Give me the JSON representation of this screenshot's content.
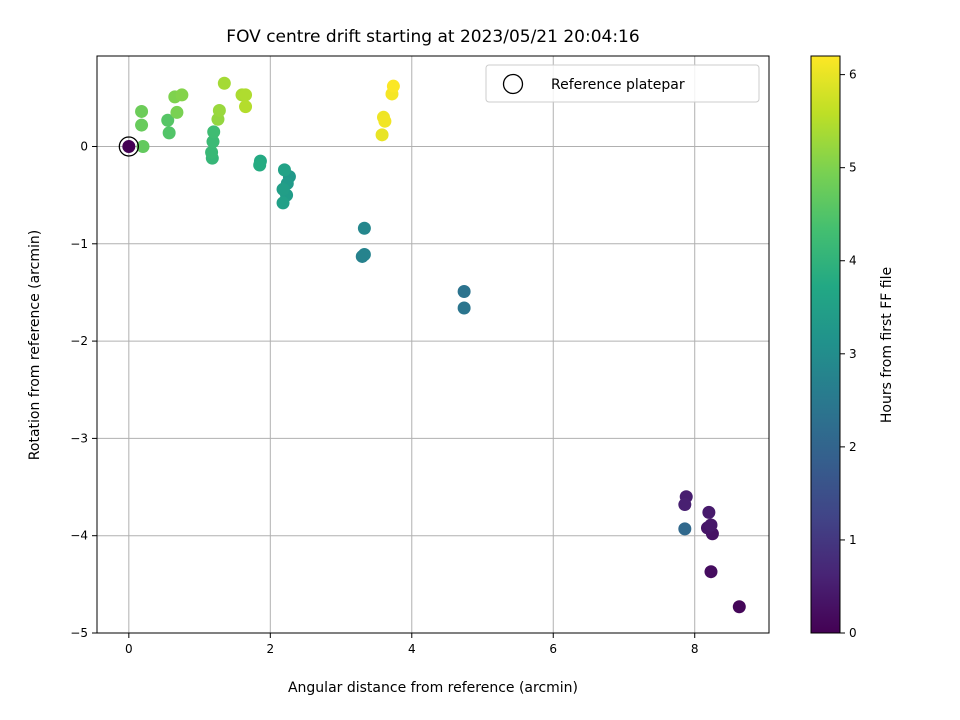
{
  "chart_data": {
    "type": "scatter",
    "title": "FOV centre drift starting at 2023/05/21 20:04:16",
    "xlabel": "Angular distance from reference (arcmin)",
    "ylabel": "Rotation from reference (arcmin)",
    "xlim": [
      -0.45,
      9.05
    ],
    "ylim": [
      -5.0,
      0.93
    ],
    "xticks": [
      0,
      2,
      4,
      6,
      8
    ],
    "yticks": [
      0,
      -1,
      -2,
      -3,
      -4,
      -5
    ],
    "xtick_labels": [
      "0",
      "2",
      "4",
      "6",
      "8"
    ],
    "ytick_labels": [
      "0",
      "−1",
      "−2",
      "−3",
      "−4",
      "−5"
    ],
    "grid": true,
    "legend_position": "top-right",
    "legend_entries": [
      "Reference platepar"
    ],
    "reference_point": {
      "x": 0.0,
      "y": 0.0
    },
    "colormap": "viridis",
    "colorbar": {
      "label": "Hours from first FF file",
      "range": [
        0,
        6.2
      ],
      "ticks": [
        0,
        1,
        2,
        3,
        4,
        5,
        6
      ],
      "tick_labels": [
        "0",
        "1",
        "2",
        "3",
        "4",
        "5",
        "6"
      ]
    },
    "points": [
      {
        "x": 0.0,
        "y": 0.0,
        "h": 0.0
      },
      {
        "x": 8.63,
        "y": -4.73,
        "h": 0.1
      },
      {
        "x": 8.23,
        "y": -4.37,
        "h": 0.2
      },
      {
        "x": 8.25,
        "y": -3.98,
        "h": 0.3
      },
      {
        "x": 8.18,
        "y": -3.92,
        "h": 0.35
      },
      {
        "x": 8.23,
        "y": -3.89,
        "h": 0.4
      },
      {
        "x": 8.2,
        "y": -3.76,
        "h": 0.45
      },
      {
        "x": 7.88,
        "y": -3.6,
        "h": 0.5
      },
      {
        "x": 7.86,
        "y": -3.68,
        "h": 0.55
      },
      {
        "x": 7.86,
        "y": -3.93,
        "h": 2.1
      },
      {
        "x": 4.74,
        "y": -1.49,
        "h": 2.35
      },
      {
        "x": 4.74,
        "y": -1.66,
        "h": 2.4
      },
      {
        "x": 3.3,
        "y": -1.13,
        "h": 2.7
      },
      {
        "x": 3.33,
        "y": -1.11,
        "h": 2.75
      },
      {
        "x": 3.33,
        "y": -0.84,
        "h": 2.85
      },
      {
        "x": 2.27,
        "y": -0.31,
        "h": 3.3
      },
      {
        "x": 2.24,
        "y": -0.38,
        "h": 3.35
      },
      {
        "x": 2.23,
        "y": -0.5,
        "h": 3.4
      },
      {
        "x": 2.18,
        "y": -0.44,
        "h": 3.45
      },
      {
        "x": 2.18,
        "y": -0.58,
        "h": 3.5
      },
      {
        "x": 2.2,
        "y": -0.24,
        "h": 3.55
      },
      {
        "x": 1.86,
        "y": -0.15,
        "h": 3.75
      },
      {
        "x": 1.85,
        "y": -0.19,
        "h": 3.8
      },
      {
        "x": 1.18,
        "y": -0.12,
        "h": 4.1
      },
      {
        "x": 1.17,
        "y": -0.06,
        "h": 4.15
      },
      {
        "x": 1.19,
        "y": 0.05,
        "h": 4.2
      },
      {
        "x": 1.2,
        "y": 0.15,
        "h": 4.25
      },
      {
        "x": 0.57,
        "y": 0.14,
        "h": 4.5
      },
      {
        "x": 0.55,
        "y": 0.27,
        "h": 4.55
      },
      {
        "x": 0.2,
        "y": 0.0,
        "h": 4.7
      },
      {
        "x": 0.18,
        "y": 0.22,
        "h": 4.75
      },
      {
        "x": 0.18,
        "y": 0.36,
        "h": 4.8
      },
      {
        "x": 0.68,
        "y": 0.35,
        "h": 4.95
      },
      {
        "x": 0.65,
        "y": 0.51,
        "h": 5.0
      },
      {
        "x": 0.75,
        "y": 0.53,
        "h": 5.05
      },
      {
        "x": 1.26,
        "y": 0.28,
        "h": 5.2
      },
      {
        "x": 1.28,
        "y": 0.37,
        "h": 5.25
      },
      {
        "x": 1.35,
        "y": 0.65,
        "h": 5.35
      },
      {
        "x": 1.6,
        "y": 0.53,
        "h": 5.4
      },
      {
        "x": 1.65,
        "y": 0.53,
        "h": 5.45
      },
      {
        "x": 1.65,
        "y": 0.41,
        "h": 5.5
      },
      {
        "x": 3.58,
        "y": 0.12,
        "h": 6.0
      },
      {
        "x": 3.6,
        "y": 0.3,
        "h": 6.05
      },
      {
        "x": 3.62,
        "y": 0.26,
        "h": 6.08
      },
      {
        "x": 3.72,
        "y": 0.54,
        "h": 6.12
      },
      {
        "x": 3.74,
        "y": 0.62,
        "h": 6.18
      }
    ]
  }
}
